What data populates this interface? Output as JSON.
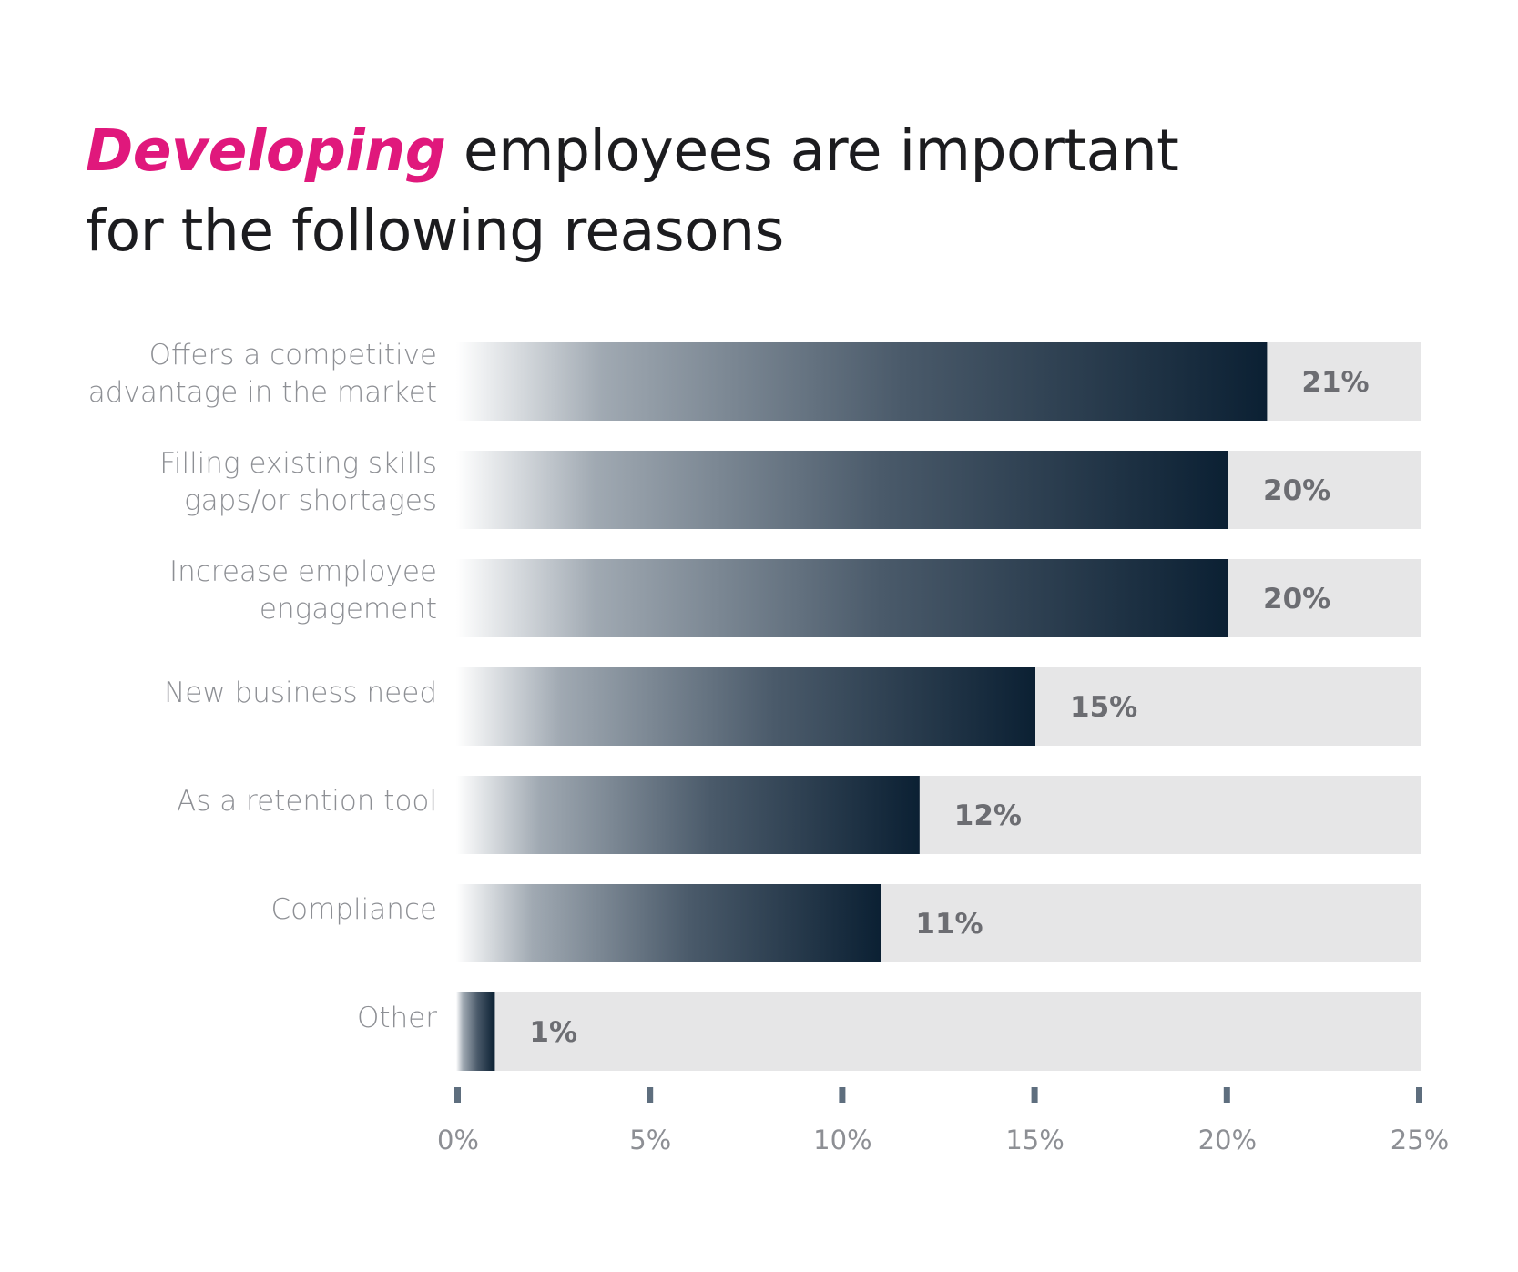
{
  "colors": {
    "accent": "#e0187c",
    "bar_dark": "#0b2033",
    "bar_light": "#ffffff",
    "track": "#e6e6e7",
    "tick": "#5e6e7e"
  },
  "chart_data": {
    "type": "bar",
    "orientation": "horizontal",
    "title_accent": "Developing",
    "title_rest": " employees are important for the following reasons",
    "categories": [
      [
        "Offers a competitive",
        "advantage in the market"
      ],
      [
        "Filling existing skills",
        "gaps/or shortages"
      ],
      [
        "Increase employee",
        "engagement"
      ],
      [
        "New business need"
      ],
      [
        "As a retention tool"
      ],
      [
        "Compliance"
      ],
      [
        "Other"
      ]
    ],
    "values": [
      21,
      20,
      20,
      15,
      12,
      11,
      1
    ],
    "value_labels": [
      "21%",
      "20%",
      "20%",
      "15%",
      "12%",
      "11%",
      "1%"
    ],
    "xlim": [
      0,
      25
    ],
    "ticks": [
      0,
      5,
      10,
      15,
      20,
      25
    ],
    "tick_labels": [
      "0%",
      "5%",
      "10%",
      "15%",
      "20%",
      "25%"
    ],
    "xlabel": "",
    "ylabel": "",
    "grid": false,
    "legend": "none"
  }
}
